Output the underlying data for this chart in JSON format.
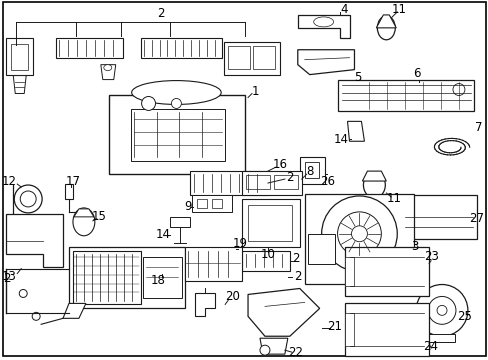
{
  "background_color": "#ffffff",
  "border_color": "#000000",
  "line_color": "#1a1a1a",
  "text_color": "#000000",
  "fig_width": 4.89,
  "fig_height": 3.6,
  "dpi": 100,
  "font_size": 7.5,
  "font_size_label": 8.5
}
